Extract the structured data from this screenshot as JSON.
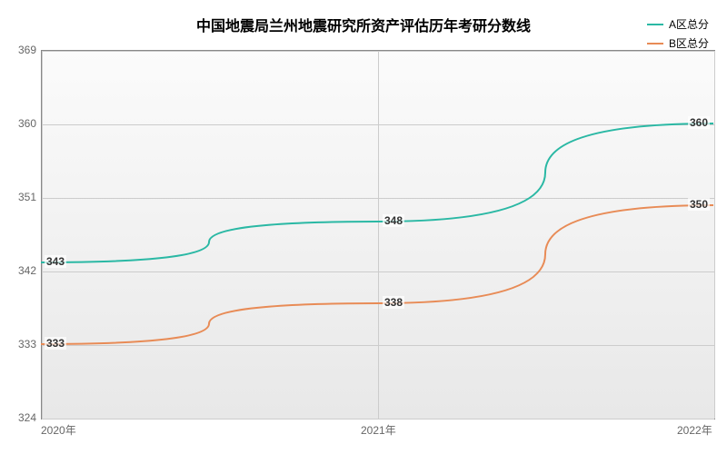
{
  "chart": {
    "type": "line",
    "title": "中国地震局兰州地震研究所资产评估历年考研分数线",
    "title_fontsize": 16,
    "title_fontweight": "bold",
    "background_color": "#ffffff",
    "plot_bg_gradient": [
      "#fbfbfb",
      "#e8e8e8"
    ],
    "border_color": "#888888",
    "grid_color": "#cccccc",
    "x": {
      "categories": [
        "2020年",
        "2021年",
        "2022年"
      ],
      "label_fontsize": 12,
      "label_color": "#666666"
    },
    "y": {
      "min": 324,
      "max": 369,
      "tick_step": 9,
      "ticks": [
        324,
        333,
        342,
        351,
        360,
        369
      ],
      "label_fontsize": 12,
      "label_color": "#666666"
    },
    "series": [
      {
        "name": "A区总分",
        "color": "#2ab8a4",
        "line_width": 2,
        "values": [
          343,
          348,
          360
        ],
        "labels": [
          "343",
          "348",
          "360"
        ]
      },
      {
        "name": "B区总分",
        "color": "#e88b56",
        "line_width": 2,
        "values": [
          333,
          338,
          350
        ],
        "labels": [
          "333",
          "338",
          "350"
        ]
      }
    ],
    "legend": {
      "position": "top-right",
      "fontsize": 12
    }
  }
}
